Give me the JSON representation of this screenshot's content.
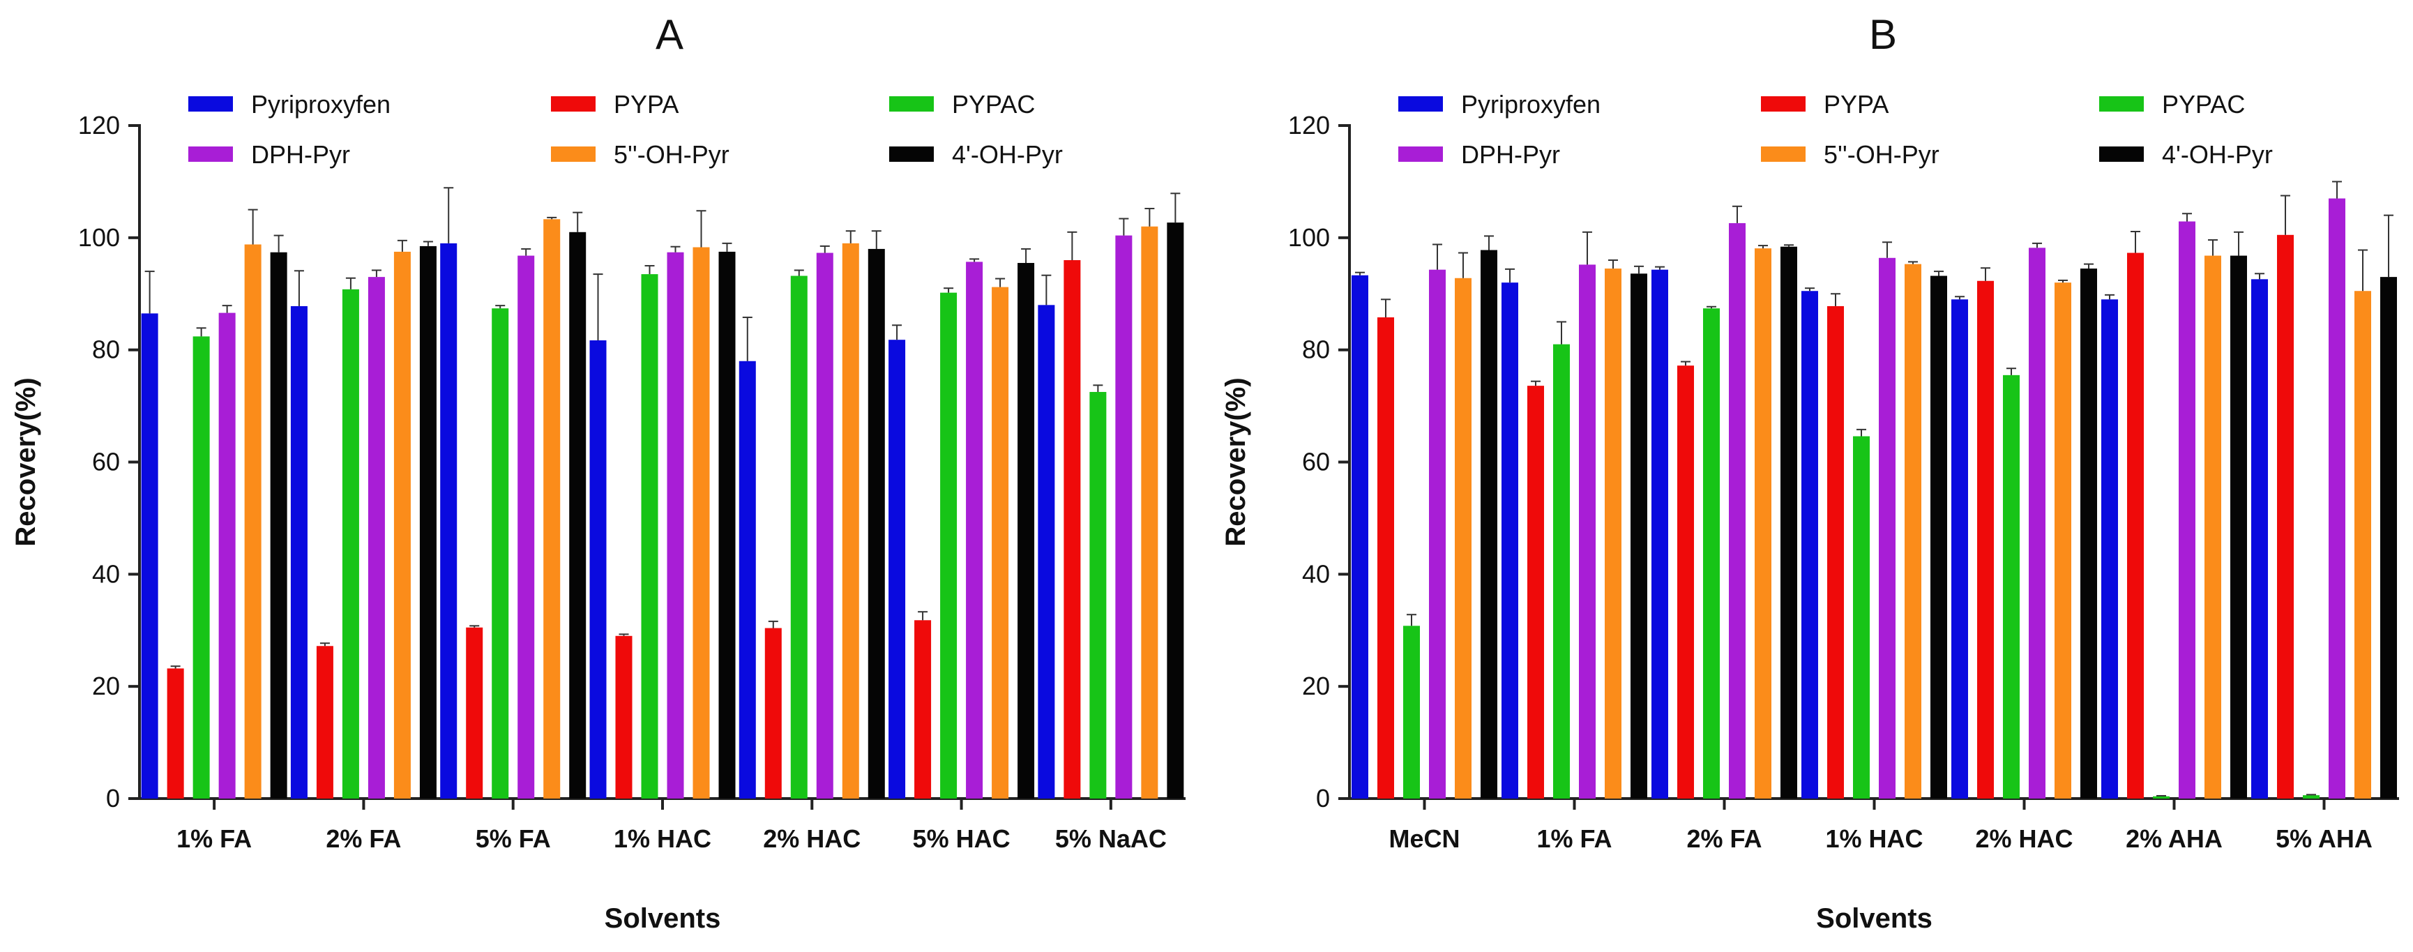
{
  "chart_data": [
    {
      "type": "bar",
      "title": "A",
      "xlabel": "Solvents",
      "ylabel": "Recovery(%)",
      "ylim": [
        0,
        120
      ],
      "yticks": [
        0,
        20,
        40,
        60,
        80,
        100,
        120
      ],
      "legend_placement": "top",
      "categories": [
        "1% FA",
        "2% FA",
        "5% FA",
        "1% HAC",
        "2% HAC",
        "5% HAC",
        "5% NaAC"
      ],
      "series": [
        {
          "name": "Pyriproxyfen",
          "color": "#0a0adf",
          "values": [
            86.5,
            87.8,
            99.0,
            81.7,
            78.0,
            81.8,
            88.0
          ],
          "errors": [
            7.5,
            6.3,
            9.9,
            11.8,
            7.8,
            2.6,
            5.3
          ]
        },
        {
          "name": "PYPA",
          "color": "#ef0a0a",
          "values": [
            23.2,
            27.2,
            30.5,
            29.0,
            30.4,
            31.8,
            96.0
          ],
          "errors": [
            0.4,
            0.5,
            0.3,
            0.3,
            1.2,
            1.5,
            5.0
          ]
        },
        {
          "name": "PYPAC",
          "color": "#17c417",
          "values": [
            82.4,
            90.8,
            87.4,
            93.5,
            93.2,
            90.2,
            72.5
          ],
          "errors": [
            1.5,
            2.0,
            0.5,
            1.5,
            1.0,
            0.8,
            1.2
          ]
        },
        {
          "name": "DPH-Pyr",
          "color": "#a81ed6",
          "values": [
            86.6,
            93.0,
            96.8,
            97.4,
            97.3,
            95.7,
            100.4
          ],
          "errors": [
            1.3,
            1.2,
            1.2,
            1.0,
            1.2,
            0.5,
            3.0
          ]
        },
        {
          "name": "5''-OH-Pyr",
          "color": "#fb8c1a",
          "values": [
            98.8,
            97.5,
            103.3,
            98.3,
            99.0,
            91.2,
            102.0
          ],
          "errors": [
            6.2,
            2.0,
            0.3,
            6.5,
            2.2,
            1.5,
            3.2
          ]
        },
        {
          "name": "4'-OH-Pyr",
          "color": "#050505",
          "values": [
            97.4,
            98.5,
            101.0,
            97.5,
            98.0,
            95.5,
            102.7
          ],
          "errors": [
            3.0,
            0.8,
            3.5,
            1.5,
            3.2,
            2.5,
            5.2
          ]
        }
      ]
    },
    {
      "type": "bar",
      "title": "B",
      "xlabel": "Solvents",
      "ylabel": "Recovery(%)",
      "ylim": [
        0,
        120
      ],
      "yticks": [
        0,
        20,
        40,
        60,
        80,
        100,
        120
      ],
      "legend_placement": "top",
      "categories": [
        "MeCN",
        "1% FA",
        "2% FA",
        "1% HAC",
        "2% HAC",
        "2% AHA",
        "5% AHA"
      ],
      "series": [
        {
          "name": "Pyriproxyfen",
          "color": "#0a0adf",
          "values": [
            93.3,
            92.0,
            94.3,
            90.5,
            89.0,
            89.0,
            92.6
          ],
          "errors": [
            0.5,
            2.4,
            0.5,
            0.5,
            0.5,
            0.8,
            1.0
          ]
        },
        {
          "name": "PYPA",
          "color": "#ef0a0a",
          "values": [
            85.8,
            73.6,
            77.2,
            87.8,
            92.3,
            97.3,
            100.5
          ],
          "errors": [
            3.2,
            0.8,
            0.7,
            2.2,
            2.3,
            3.8,
            7.0
          ]
        },
        {
          "name": "PYPAC",
          "color": "#17c417",
          "values": [
            30.8,
            81.0,
            87.4,
            64.6,
            75.5,
            0.4,
            0.6
          ],
          "errors": [
            2.0,
            4.0,
            0.3,
            1.2,
            1.2,
            0.1,
            0.1
          ]
        },
        {
          "name": "DPH-Pyr",
          "color": "#a81ed6",
          "values": [
            94.3,
            95.2,
            102.6,
            96.4,
            98.2,
            102.9,
            107.0
          ],
          "errors": [
            4.5,
            5.8,
            3.0,
            2.8,
            0.8,
            1.4,
            3.0
          ]
        },
        {
          "name": "5''-OH-Pyr",
          "color": "#fb8c1a",
          "values": [
            92.8,
            94.5,
            98.1,
            95.3,
            92.0,
            96.8,
            90.5
          ],
          "errors": [
            4.5,
            1.5,
            0.5,
            0.4,
            0.4,
            2.8,
            7.3
          ]
        },
        {
          "name": "4'-OH-Pyr",
          "color": "#050505",
          "values": [
            97.8,
            93.6,
            98.4,
            93.2,
            94.5,
            96.8,
            93.0
          ],
          "errors": [
            2.5,
            1.3,
            0.3,
            0.8,
            0.8,
            4.2,
            11.0
          ]
        }
      ]
    }
  ]
}
